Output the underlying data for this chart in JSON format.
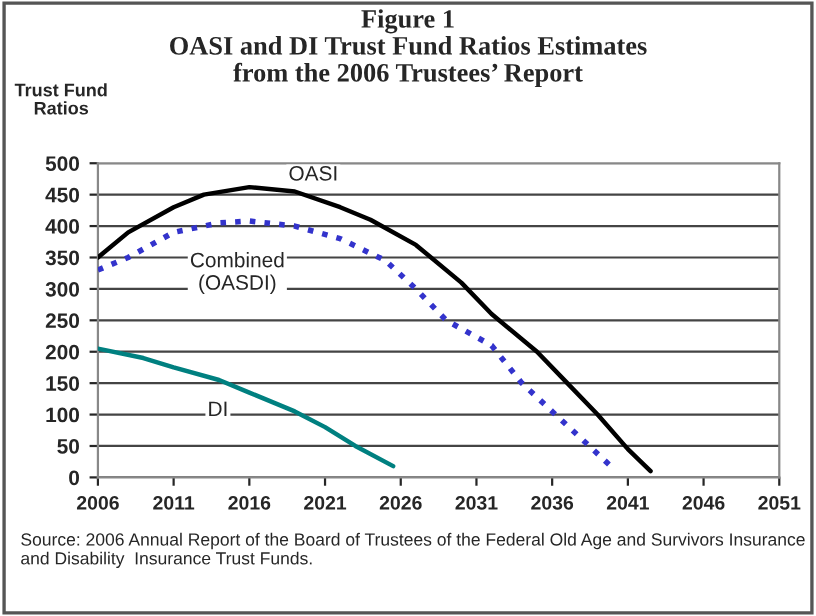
{
  "chart_data": {
    "type": "line",
    "title": "Figure 1\nOASI and DI Trust Fund Ratios Estimates\nfrom the 2006 Trustees’ Report",
    "ylabel": "Trust Fund\nRatios",
    "xlim": [
      2006,
      2051
    ],
    "xticks": [
      2006,
      2011,
      2016,
      2021,
      2026,
      2031,
      2036,
      2041,
      2046,
      2051
    ],
    "ylim": [
      0,
      500
    ],
    "yticks": [
      0,
      50,
      100,
      150,
      200,
      250,
      300,
      350,
      400,
      450,
      500
    ],
    "grid": "y",
    "series": [
      {
        "name": "OASI",
        "color": "#000000",
        "line_style": "solid",
        "x": [
          2006,
          2008,
          2011,
          2013,
          2016,
          2019,
          2022,
          2024,
          2027,
          2030,
          2032,
          2035,
          2037,
          2039,
          2041,
          2042.5
        ],
        "values": [
          350,
          390,
          430,
          450,
          462,
          455,
          430,
          410,
          370,
          310,
          260,
          200,
          150,
          100,
          45,
          10
        ]
      },
      {
        "name": "Combined\n(OASDI)",
        "color": "#3333cc",
        "line_style": "dotted",
        "x": [
          2006,
          2008,
          2011,
          2014,
          2016,
          2019,
          2022,
          2025,
          2027,
          2029,
          2032,
          2034,
          2036,
          2038,
          2040
        ],
        "values": [
          330,
          350,
          390,
          405,
          408,
          400,
          380,
          345,
          300,
          250,
          210,
          150,
          105,
          60,
          15
        ]
      },
      {
        "name": "DI",
        "color": "#008080",
        "line_style": "solid",
        "x": [
          2006,
          2009,
          2011,
          2014,
          2016,
          2019,
          2021,
          2023,
          2025.5
        ],
        "values": [
          205,
          190,
          175,
          155,
          135,
          105,
          80,
          50,
          18
        ]
      }
    ],
    "annotations": [
      "Source: 2006 Annual Report of the Board of Trustees of the Federal Old Age and Survivors Insurance and Disability  Insurance Trust Funds."
    ]
  }
}
